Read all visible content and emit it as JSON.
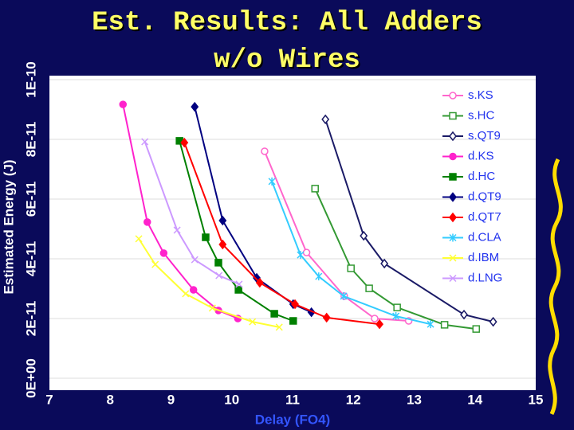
{
  "chart_data": {
    "type": "line",
    "title": "Est. Results: All Adders",
    "subtitle": "w/o Wires",
    "x_label": "Delay (FO4)",
    "y_label": "Estimated Energy (J)",
    "xlim": [
      7,
      15
    ],
    "xticks": [
      7,
      8,
      9,
      10,
      11,
      12,
      13,
      14,
      15
    ],
    "ylim": [
      0,
      1e-10
    ],
    "yticks": [
      {
        "value": 0,
        "label": "0E+00"
      },
      {
        "value": 2e-11,
        "label": "2E-11"
      },
      {
        "value": 4e-11,
        "label": "4E-11"
      },
      {
        "value": 6e-11,
        "label": "6E-11"
      },
      {
        "value": 8e-11,
        "label": "8E-11"
      },
      {
        "value": 1e-10,
        "label": "1E-10"
      }
    ],
    "grid": true,
    "legend": "upper right",
    "series": [
      {
        "name": "s.KS",
        "color": "#ff66cc",
        "marker": "circle",
        "filled": false,
        "x": [
          10.54,
          11.23,
          11.85,
          12.35,
          12.91
        ],
        "values": [
          7.6e-11,
          4.21e-11,
          2.75e-11,
          2e-11,
          1.92e-11
        ]
      },
      {
        "name": "s.HC",
        "color": "#339933",
        "marker": "square",
        "filled": false,
        "x": [
          11.37,
          11.96,
          12.26,
          12.72,
          13.5,
          14.02
        ],
        "values": [
          6.35e-11,
          3.68e-11,
          3.01e-11,
          2.37e-11,
          1.79e-11,
          1.65e-11
        ]
      },
      {
        "name": "s.QT9",
        "color": "#1a1a66",
        "marker": "diamond",
        "filled": false,
        "x": [
          11.54,
          12.17,
          12.51,
          13.82,
          14.3
        ],
        "values": [
          8.67e-11,
          4.77e-11,
          3.84e-11,
          2.13e-11,
          1.89e-11
        ]
      },
      {
        "name": "d.KS",
        "color": "#ff22cc",
        "marker": "circle",
        "filled": true,
        "x": [
          8.21,
          8.61,
          8.88,
          9.37,
          9.78,
          10.1
        ],
        "values": [
          9.17e-11,
          5.23e-11,
          4.19e-11,
          2.96e-11,
          2.27e-11,
          2e-11
        ]
      },
      {
        "name": "d.HC",
        "color": "#008000",
        "marker": "square",
        "filled": true,
        "x": [
          9.14,
          9.57,
          9.78,
          10.11,
          10.7,
          11.01
        ],
        "values": [
          7.95e-11,
          4.72e-11,
          3.87e-11,
          2.96e-11,
          2.16e-11,
          1.92e-11
        ]
      },
      {
        "name": "d.QT9",
        "color": "#000080",
        "marker": "diamond",
        "filled": true,
        "x": [
          9.39,
          9.85,
          10.41,
          11.01,
          11.31
        ],
        "values": [
          9.09e-11,
          5.28e-11,
          3.36e-11,
          2.48e-11,
          2.21e-11
        ]
      },
      {
        "name": "d.QT7",
        "color": "#ff0000",
        "marker": "diamond",
        "filled": true,
        "x": [
          9.22,
          9.85,
          10.46,
          11.04,
          11.56,
          12.43
        ],
        "values": [
          7.89e-11,
          4.48e-11,
          3.2e-11,
          2.48e-11,
          2.03e-11,
          1.81e-11
        ]
      },
      {
        "name": "d.CLA",
        "color": "#33ccff",
        "marker": "star",
        "filled": false,
        "x": [
          10.66,
          11.13,
          11.43,
          11.84,
          12.7,
          13.27
        ],
        "values": [
          6.59e-11,
          4.13e-11,
          3.41e-11,
          2.75e-11,
          2.08e-11,
          1.81e-11
        ]
      },
      {
        "name": "d.IBM",
        "color": "#ffff33",
        "marker": "cross",
        "filled": false,
        "x": [
          8.47,
          8.74,
          9.24,
          9.68,
          10.34,
          10.78
        ],
        "values": [
          4.67e-11,
          3.81e-11,
          2.83e-11,
          2.35e-11,
          1.89e-11,
          1.71e-11
        ]
      },
      {
        "name": "d.LNG",
        "color": "#cc99ff",
        "marker": "cross",
        "filled": false,
        "x": [
          8.57,
          9.1,
          9.39,
          9.79,
          10.12
        ],
        "values": [
          7.92e-11,
          4.96e-11,
          3.97e-11,
          3.44e-11,
          3.15e-11
        ]
      }
    ]
  }
}
